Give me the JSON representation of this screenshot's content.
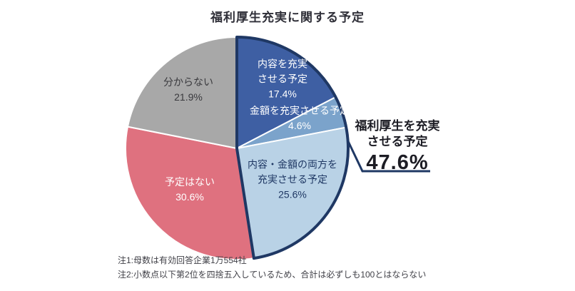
{
  "title": "福利厚生充実に関する予定",
  "chart_data": {
    "type": "pie",
    "title": "福利厚生充実に関する予定",
    "unit": "%",
    "start_angle": "12-oclock",
    "direction": "clockwise",
    "segments": [
      {
        "label": "内容を充実させる予定",
        "value": 17.4,
        "display": "内容を充実\nさせる予定\n17.4%",
        "color": "#3e5fa3",
        "text_color": "#ffffff"
      },
      {
        "label": "金額を充実させる予定",
        "value": 4.6,
        "display": "金額を充実させる予定\n4.6%",
        "color": "#7ba3cb",
        "text_color": "#ffffff"
      },
      {
        "label": "内容・金額の両方を充実させる予定",
        "value": 25.6,
        "display": "内容・金額の両方を\n充実させる予定\n25.6%",
        "color": "#b9d2e6",
        "text_color": "#1f3864"
      },
      {
        "label": "予定はない",
        "value": 30.6,
        "display": "予定はない\n30.6%",
        "color": "#df717f",
        "text_color": "#ffffff"
      },
      {
        "label": "分からない",
        "value": 21.9,
        "display": "分からない\n21.9%",
        "color": "#a8a8a8",
        "text_color": "#3a3a3e"
      }
    ],
    "group_callout": {
      "segments_included": [
        0,
        1,
        2
      ],
      "label": "福利厚生を充実\nさせる予定",
      "value": 47.6,
      "display_value": "47.6%",
      "outline_color": "#1f3864"
    },
    "legend_position": "none",
    "grid": false
  },
  "notes": [
    "注1:母数は有効回答企業1万554社",
    "注2:小数点以下第2位を四捨五入しているため、合計は必ずしも100とはならない"
  ]
}
